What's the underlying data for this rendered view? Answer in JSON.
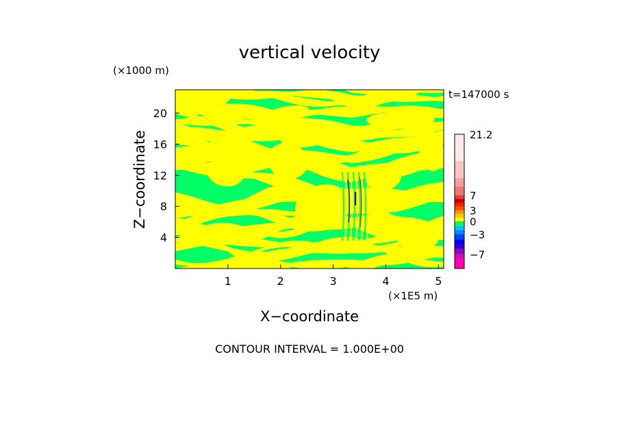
{
  "chart_data": {
    "type": "heatmap",
    "title": "vertical velocity",
    "xlabel": "X−coordinate",
    "ylabel": "Z−coordinate",
    "x_unit": "(×1E5 m)",
    "y_unit": "(×1000 m)",
    "time_label": "t=147000 s",
    "contour_interval": "CONTOUR INTERVAL = 1.000E+00",
    "xlim": [
      0,
      5.1
    ],
    "ylim": [
      0,
      23
    ],
    "x_ticks": [
      1,
      2,
      3,
      4,
      5
    ],
    "y_ticks": [
      4,
      8,
      12,
      16,
      20
    ],
    "field_colors": {
      "positive": "#ffff00",
      "negative": "#00ff66",
      "core_dark": "#2020a0",
      "core_warm": "#c04040"
    },
    "colorbar": {
      "tick_labels": [
        "21.2",
        "7",
        "3",
        "0",
        "−3",
        "−7"
      ],
      "tick_values": [
        21.2,
        7,
        3,
        0,
        -3,
        -7
      ],
      "levels": [
        {
          "from": -10,
          "to": -8,
          "color": "#ff00aa"
        },
        {
          "from": -8,
          "to": -7,
          "color": "#e000c0"
        },
        {
          "from": -7,
          "to": -6,
          "color": "#9900bb"
        },
        {
          "from": -6,
          "to": -5,
          "color": "#3300cc"
        },
        {
          "from": -5,
          "to": -4,
          "color": "#0000ff"
        },
        {
          "from": -4,
          "to": -3,
          "color": "#0044ff"
        },
        {
          "from": -3,
          "to": -2,
          "color": "#0088ff"
        },
        {
          "from": -2,
          "to": -1,
          "color": "#00c8ff"
        },
        {
          "from": -1,
          "to": 0,
          "color": "#00ff66"
        },
        {
          "from": 0,
          "to": 1,
          "color": "#ffff00"
        },
        {
          "from": 1,
          "to": 2,
          "color": "#ffc800"
        },
        {
          "from": 2,
          "to": 3,
          "color": "#ff9900"
        },
        {
          "from": 3,
          "to": 4,
          "color": "#ff5500"
        },
        {
          "from": 4,
          "to": 5,
          "color": "#ee2200"
        },
        {
          "from": 5,
          "to": 6,
          "color": "#cc0000"
        },
        {
          "from": 6,
          "to": 7,
          "color": "#dd4444"
        },
        {
          "from": 7,
          "to": 9,
          "color": "#ee7777"
        },
        {
          "from": 9,
          "to": 11,
          "color": "#f4a0a0"
        },
        {
          "from": 11,
          "to": 15,
          "color": "#f8c4c4"
        },
        {
          "from": 15,
          "to": 21.2,
          "color": "#fde8e8"
        }
      ]
    }
  }
}
